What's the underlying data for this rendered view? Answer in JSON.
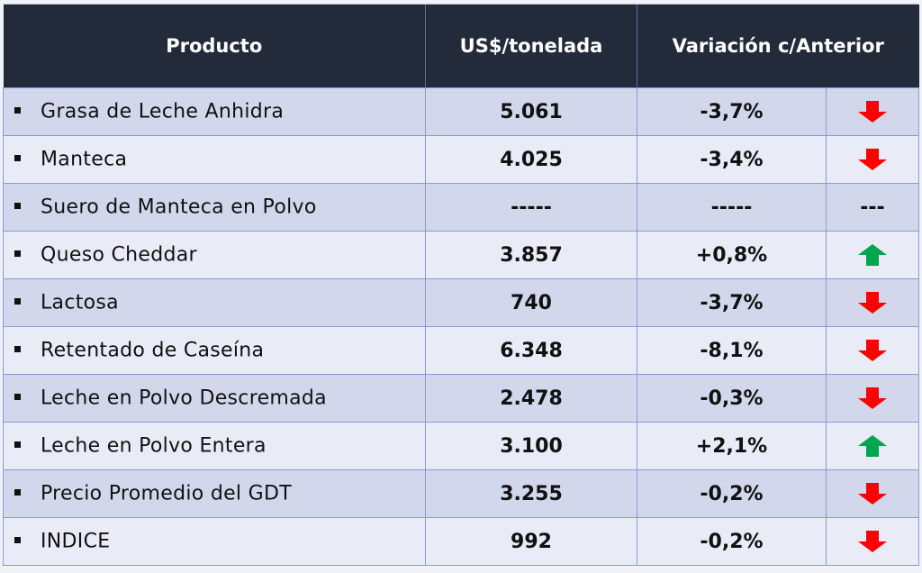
{
  "header": {
    "col_product": "Producto",
    "col_price": "US$/tonelada",
    "col_variation": "Variación c/Anterior"
  },
  "colors": {
    "header_bg": "#232b3a",
    "row_odd": "#d2d7ec",
    "row_even": "#e9ebf6",
    "down": "#ff0000",
    "up": "#00a550"
  },
  "rows": [
    {
      "product": "Grasa de Leche Anhidra",
      "price": "5.061",
      "variation": "-3,7%",
      "trend": "down"
    },
    {
      "product": "Manteca",
      "price": "4.025",
      "variation": "-3,4%",
      "trend": "down"
    },
    {
      "product": "Suero de Manteca en Polvo",
      "price": "-----",
      "variation": "-----",
      "trend": "none",
      "trend_text": "---"
    },
    {
      "product": "Queso Cheddar",
      "price": "3.857",
      "variation": "+0,8%",
      "trend": "up"
    },
    {
      "product": "Lactosa",
      "price": "740",
      "variation": "-3,7%",
      "trend": "down"
    },
    {
      "product": "Retentado de Caseína",
      "price": "6.348",
      "variation": "-8,1%",
      "trend": "down"
    },
    {
      "product": "Leche en Polvo Descremada",
      "price": "2.478",
      "variation": "-0,3%",
      "trend": "down"
    },
    {
      "product": "Leche en Polvo Entera",
      "price": "3.100",
      "variation": "+2,1%",
      "trend": "up"
    },
    {
      "product": "Precio Promedio del GDT",
      "price": "3.255",
      "variation": "-0,2%",
      "trend": "down"
    },
    {
      "product": "INDICE",
      "price": "992",
      "variation": "-0,2%",
      "trend": "down"
    }
  ]
}
